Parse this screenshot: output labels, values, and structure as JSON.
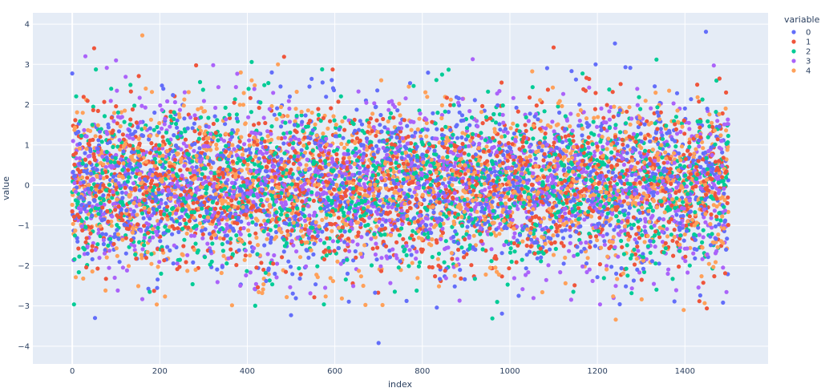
{
  "chart_data": {
    "type": "scatter",
    "title": "",
    "xlabel": "index",
    "ylabel": "value",
    "xlim": [
      -90,
      1590
    ],
    "ylim": [
      -4.44,
      4.28
    ],
    "x_ticks": [
      0,
      200,
      400,
      600,
      800,
      1000,
      1200,
      1400
    ],
    "y_ticks": [
      4,
      3,
      2,
      1,
      0,
      -1,
      -2,
      -3,
      -4
    ],
    "y_tick_labels": [
      "4",
      "3",
      "2",
      "1",
      "0",
      "−1",
      "−2",
      "−3",
      "−4"
    ],
    "grid": true,
    "legend": {
      "title": "variable",
      "position": "right-top"
    },
    "series": [
      {
        "name": "0",
        "color": "#636efa",
        "n": 1500,
        "distribution": "normal(0,1)",
        "notable_points": [
          [
            1448,
            3.81
          ],
          [
            700,
            -3.92
          ],
          [
            52,
            -3.3
          ],
          [
            982,
            -3.19
          ],
          [
            833,
            -3.04
          ],
          [
            500,
            -3.23
          ],
          [
            1240,
            3.52
          ]
        ]
      },
      {
        "name": "1",
        "color": "#ef553b",
        "n": 1500,
        "distribution": "normal(0,1)",
        "notable_points": [
          [
            50,
            3.4
          ],
          [
            1100,
            3.42
          ],
          [
            484,
            3.19
          ],
          [
            1450,
            -3.06
          ]
        ]
      },
      {
        "name": "2",
        "color": "#00cc96",
        "n": 1500,
        "distribution": "normal(0,1)",
        "notable_points": [
          [
            410,
            3.06
          ],
          [
            1335,
            3.12
          ],
          [
            960,
            -3.31
          ],
          [
            575,
            -2.96
          ]
        ]
      },
      {
        "name": "3",
        "color": "#ab63fa",
        "n": 1500,
        "distribution": "normal(0,1)",
        "notable_points": [
          [
            30,
            3.2
          ],
          [
            100,
            3.1
          ],
          [
            322,
            2.98
          ],
          [
            915,
            3.13
          ]
        ]
      },
      {
        "name": "4",
        "color": "#ffa15a",
        "n": 1500,
        "distribution": "normal(0,1)",
        "notable_points": [
          [
            160,
            3.72
          ],
          [
            1242,
            -3.34
          ],
          [
            1397,
            -3.1
          ]
        ]
      }
    ]
  },
  "layout": {
    "plot_bg": "#e5ecf6",
    "grid_color": "#ffffff",
    "seed": 12345
  }
}
